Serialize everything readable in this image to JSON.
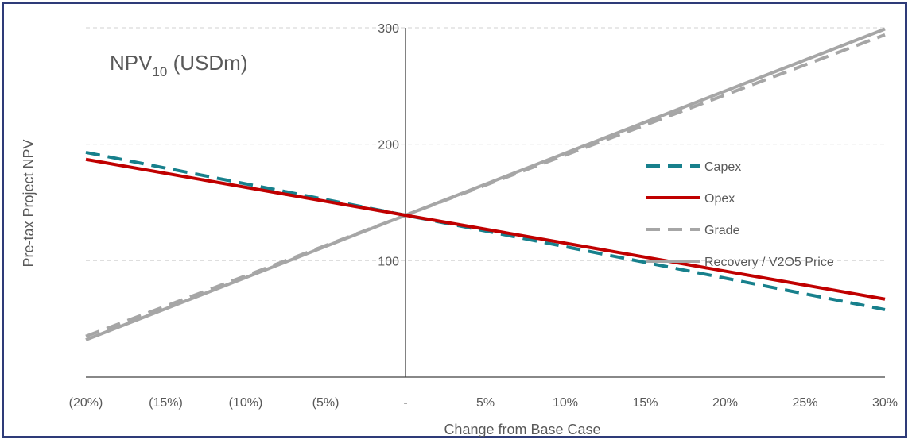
{
  "chart_data": {
    "type": "line",
    "title": "NPV",
    "title_subscript": "10",
    "title_suffix": " (USDm)",
    "xlabel": "Change from Base Case",
    "ylabel": "Pre-tax Project NPV",
    "x": [
      -20,
      -15,
      -10,
      -5,
      0,
      5,
      10,
      15,
      20,
      25,
      30
    ],
    "x_tick_labels": [
      "(20%)",
      "(15%)",
      "(10%)",
      "(5%)",
      "-",
      "5%",
      "10%",
      "15%",
      "20%",
      "25%",
      "30%"
    ],
    "y_tick_labels": [
      "300",
      "200",
      "100",
      ""
    ],
    "y_ticks": [
      300,
      200,
      100,
      0
    ],
    "ylim": [
      0,
      300
    ],
    "xlim": [
      -20,
      30
    ],
    "grid": "horizontal dashed",
    "legend_position": "right",
    "series": [
      {
        "name": "Capex",
        "color": "#17808c",
        "style": "dashed",
        "x": [
          -20,
          0,
          30
        ],
        "values": [
          193,
          139,
          58
        ]
      },
      {
        "name": "Opex",
        "color": "#c00000",
        "style": "solid",
        "x": [
          -20,
          0,
          30
        ],
        "values": [
          187,
          139,
          67
        ]
      },
      {
        "name": "Grade",
        "color": "#a6a6a6",
        "style": "dashed",
        "x": [
          -20,
          0,
          30
        ],
        "values": [
          35,
          139,
          294
        ]
      },
      {
        "name": "Recovery / V2O5 Price",
        "color": "#a6a6a6",
        "style": "solid",
        "x": [
          -20,
          0,
          30
        ],
        "values": [
          32,
          139,
          299
        ]
      }
    ]
  }
}
